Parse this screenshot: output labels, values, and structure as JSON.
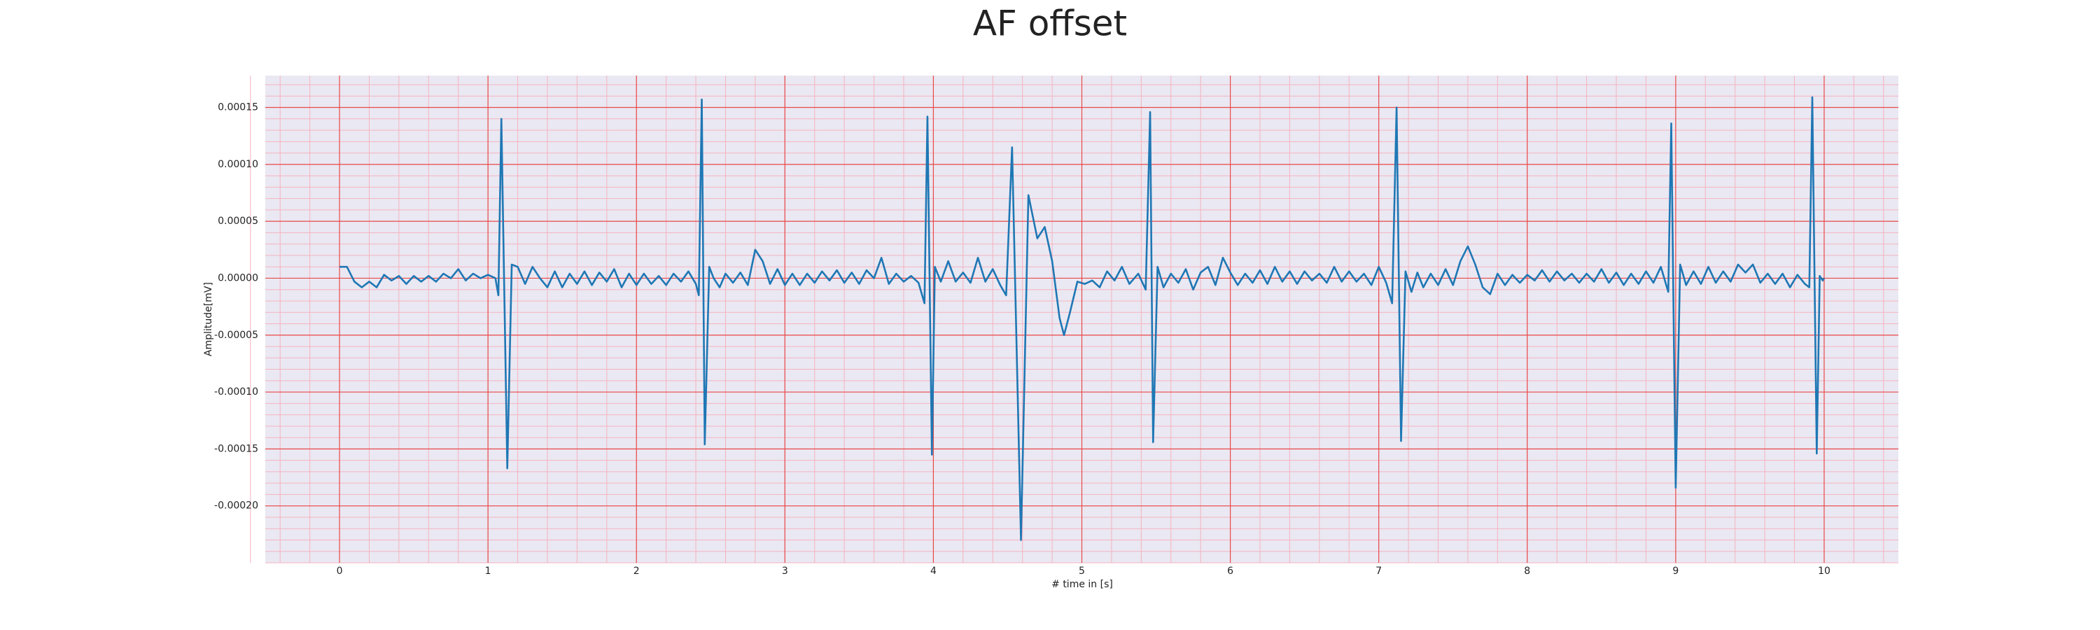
{
  "chart_data": {
    "type": "line",
    "title": "AF offset",
    "xlabel": "# time in [s]",
    "ylabel": "Amplitude[mV]",
    "color": "#1f77b4",
    "grid": true,
    "minor_grid": true,
    "xlim": [
      -0.5,
      10.5
    ],
    "ylim": [
      -0.00025,
      0.000178
    ],
    "xticks": [
      0,
      1,
      2,
      3,
      4,
      5,
      6,
      7,
      8,
      9,
      10
    ],
    "yticks": [
      {
        "value": -0.0002,
        "label": "-0.00020"
      },
      -0.00015,
      {
        "value": -0.0001,
        "label": "-0.00010"
      },
      -5e-05,
      {
        "value": 0,
        "label": "0.00000"
      },
      5e-05,
      {
        "value": 0.0001,
        "label": "0.00010"
      },
      0.00015
    ],
    "x": [
      0,
      0.05,
      0.1,
      0.15,
      0.2,
      0.25,
      0.3,
      0.35,
      0.4,
      0.45,
      0.5,
      0.55,
      0.6,
      0.65,
      0.7,
      0.75,
      0.8,
      0.85,
      0.9,
      0.95,
      1.0,
      1.05,
      1.07,
      1.09,
      1.13,
      1.16,
      1.2,
      1.25,
      1.3,
      1.35,
      1.4,
      1.45,
      1.5,
      1.55,
      1.6,
      1.65,
      1.7,
      1.75,
      1.8,
      1.85,
      1.9,
      1.95,
      2.0,
      2.05,
      2.1,
      2.15,
      2.2,
      2.25,
      2.3,
      2.35,
      2.4,
      2.42,
      2.44,
      2.46,
      2.49,
      2.52,
      2.56,
      2.6,
      2.65,
      2.7,
      2.75,
      2.8,
      2.85,
      2.9,
      2.95,
      3.0,
      3.05,
      3.1,
      3.15,
      3.2,
      3.25,
      3.3,
      3.35,
      3.4,
      3.45,
      3.5,
      3.55,
      3.6,
      3.65,
      3.7,
      3.75,
      3.8,
      3.85,
      3.9,
      3.94,
      3.96,
      3.99,
      4.01,
      4.05,
      4.1,
      4.15,
      4.2,
      4.25,
      4.3,
      4.35,
      4.4,
      4.45,
      4.49,
      4.53,
      4.59,
      4.64,
      4.7,
      4.75,
      4.8,
      4.85,
      4.88,
      4.92,
      4.97,
      5.02,
      5.07,
      5.12,
      5.17,
      5.22,
      5.27,
      5.32,
      5.38,
      5.43,
      5.46,
      5.48,
      5.51,
      5.55,
      5.6,
      5.65,
      5.7,
      5.75,
      5.8,
      5.85,
      5.9,
      5.95,
      6.0,
      6.05,
      6.1,
      6.15,
      6.2,
      6.25,
      6.3,
      6.35,
      6.4,
      6.45,
      6.5,
      6.55,
      6.6,
      6.65,
      6.7,
      6.75,
      6.8,
      6.85,
      6.9,
      6.95,
      7.0,
      7.05,
      7.09,
      7.12,
      7.15,
      7.18,
      7.22,
      7.26,
      7.3,
      7.35,
      7.4,
      7.45,
      7.5,
      7.55,
      7.6,
      7.65,
      7.7,
      7.75,
      7.8,
      7.85,
      7.9,
      7.95,
      8.0,
      8.05,
      8.1,
      8.15,
      8.2,
      8.25,
      8.3,
      8.35,
      8.4,
      8.45,
      8.5,
      8.55,
      8.6,
      8.65,
      8.7,
      8.75,
      8.8,
      8.85,
      8.9,
      8.95,
      8.97,
      9.0,
      9.03,
      9.07,
      9.12,
      9.17,
      9.22,
      9.27,
      9.32,
      9.37,
      9.42,
      9.47,
      9.52,
      9.57,
      9.62,
      9.67,
      9.72,
      9.77,
      9.82,
      9.87,
      9.9,
      9.92,
      9.95,
      9.97,
      9.99,
      10.0
    ],
    "values": [
      1e-05,
      1e-05,
      -3e-06,
      -8e-06,
      -3e-06,
      -8e-06,
      3e-06,
      -2e-06,
      2e-06,
      -5e-06,
      2e-06,
      -3e-06,
      2e-06,
      -3e-06,
      4e-06,
      0,
      8e-06,
      -2e-06,
      4e-06,
      0,
      3e-06,
      0,
      -1.5e-05,
      0.00014,
      -0.000167,
      1.2e-05,
      1e-05,
      -5e-06,
      1e-05,
      0,
      -8e-06,
      6e-06,
      -8e-06,
      4e-06,
      -5e-06,
      6e-06,
      -6e-06,
      5e-06,
      -3e-06,
      8e-06,
      -8e-06,
      4e-06,
      -6e-06,
      4e-06,
      -5e-06,
      2e-06,
      -6e-06,
      4e-06,
      -3e-06,
      6e-06,
      -5e-06,
      -1.5e-05,
      0.000157,
      -0.000146,
      1e-05,
      0,
      -8e-06,
      4e-06,
      -4e-06,
      5e-06,
      -6e-06,
      2.5e-05,
      1.5e-05,
      -5e-06,
      8e-06,
      -6e-06,
      4e-06,
      -6e-06,
      4e-06,
      -4e-06,
      6e-06,
      -2e-06,
      7e-06,
      -4e-06,
      5e-06,
      -5e-06,
      7e-06,
      0,
      1.8e-05,
      -5e-06,
      4e-06,
      -3e-06,
      2e-06,
      -4e-06,
      -2.2e-05,
      0.000142,
      -0.000155,
      1e-05,
      -3e-06,
      1.5e-05,
      -3e-06,
      5e-06,
      -4e-06,
      1.8e-05,
      -3e-06,
      8e-06,
      -6e-06,
      -1.5e-05,
      0.000115,
      -0.00023,
      7.3e-05,
      3.5e-05,
      4.5e-05,
      1.5e-05,
      -3.5e-05,
      -5e-05,
      -3e-05,
      -3e-06,
      -5e-06,
      -2e-06,
      -8e-06,
      6e-06,
      -2e-06,
      1e-05,
      -5e-06,
      4e-06,
      -1e-05,
      0.000146,
      -0.000144,
      1e-05,
      -8e-06,
      4e-06,
      -4e-06,
      8e-06,
      -1e-05,
      5e-06,
      1e-05,
      -6e-06,
      1.8e-05,
      5e-06,
      -6e-06,
      4e-06,
      -4e-06,
      7e-06,
      -5e-06,
      1e-05,
      -3e-06,
      6e-06,
      -5e-06,
      6e-06,
      -2e-06,
      4e-06,
      -4e-06,
      1e-05,
      -3e-06,
      6e-06,
      -3e-06,
      4e-06,
      -6e-06,
      1e-05,
      -4e-06,
      -2.2e-05,
      0.00015,
      -0.000143,
      6e-06,
      -1.2e-05,
      5e-06,
      -8e-06,
      4e-06,
      -6e-06,
      8e-06,
      -6e-06,
      1.5e-05,
      2.8e-05,
      1.2e-05,
      -8e-06,
      -1.4e-05,
      4e-06,
      -6e-06,
      3e-06,
      -4e-06,
      3e-06,
      -2e-06,
      7e-06,
      -3e-06,
      6e-06,
      -2e-06,
      4e-06,
      -4e-06,
      4e-06,
      -3e-06,
      8e-06,
      -4e-06,
      5e-06,
      -6e-06,
      4e-06,
      -5e-06,
      6e-06,
      -4e-06,
      1e-05,
      -1.2e-05,
      0.000136,
      -0.000184,
      1.2e-05,
      -6e-06,
      6e-06,
      -5e-06,
      1e-05,
      -4e-06,
      6e-06,
      -3e-06,
      1.2e-05,
      5e-06,
      1.2e-05,
      -4e-06,
      4e-06,
      -5e-06,
      4e-06,
      -8e-06,
      3e-06,
      -5e-06,
      -8e-06,
      0.000159,
      -0.000154,
      2e-06,
      -2e-06,
      0
    ]
  }
}
